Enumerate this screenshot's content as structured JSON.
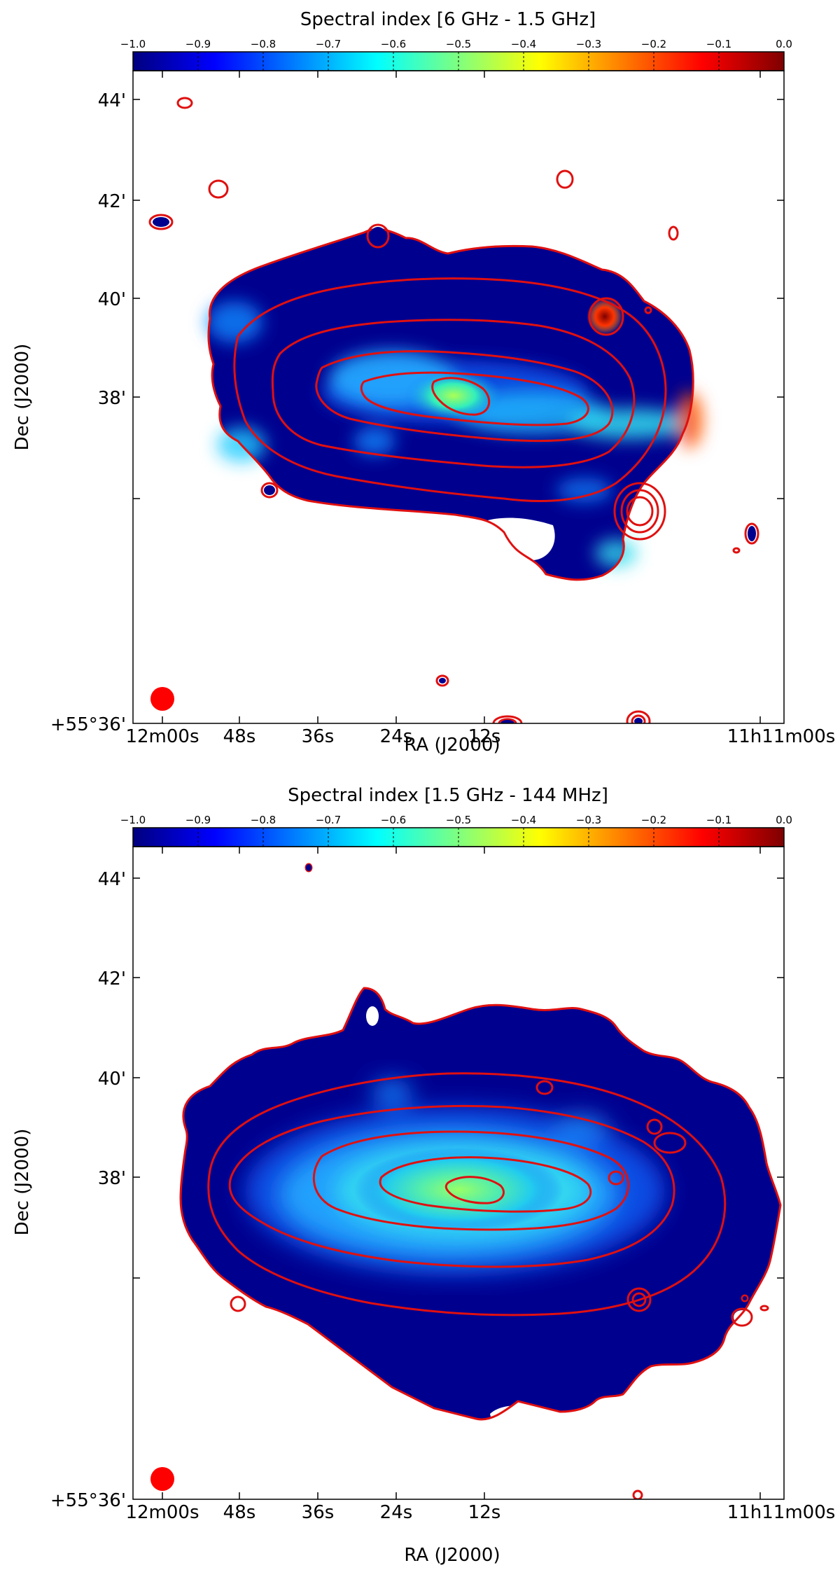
{
  "colorscale": {
    "stops": [
      "#00007f",
      "#0000ff",
      "#007fff",
      "#00ffff",
      "#7fff7f",
      "#ffff00",
      "#ff7f00",
      "#ff0000",
      "#7f0000"
    ],
    "contour_color": "#e01010",
    "ticks": [
      "−1.0",
      "−0.9",
      "−0.8",
      "−0.7",
      "−0.6",
      "−0.5",
      "−0.4",
      "−0.3",
      "−0.2",
      "−0.1",
      "0.0"
    ]
  },
  "axes": {
    "xlabel": "RA (J2000)",
    "ylabel": "Dec (J2000)",
    "xticks": [
      "12m00s",
      "48s",
      "36s",
      "24s",
      "12s",
      "11h11m00s"
    ],
    "yticks": [
      "44'",
      "42'",
      "40'",
      "38'",
      "+55°36'"
    ]
  },
  "panels": [
    {
      "title": "Spectral index [6 GHz - 1.5 GHz]"
    },
    {
      "title": "Spectral index [1.5 GHz - 144 MHz]"
    }
  ]
}
